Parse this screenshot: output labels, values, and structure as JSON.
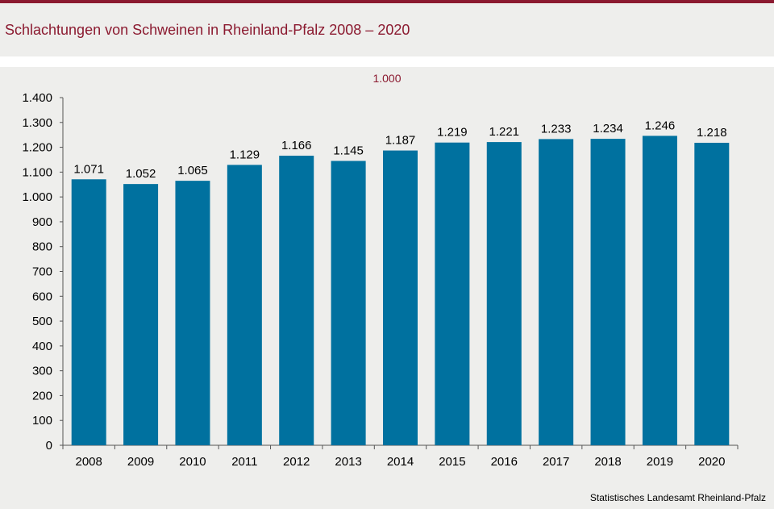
{
  "title": "Schlachtungen von Schweinen in Rheinland-Pfalz 2008 – 2020",
  "unit_label": "1.000",
  "source": "Statistisches Landesamt  Rheinland-Pfalz",
  "colors": {
    "bar": "#00719f",
    "accent": "#8b1a30",
    "background": "#eeeeec"
  },
  "chart_data": {
    "type": "bar",
    "categories": [
      "2008",
      "2009",
      "2010",
      "2011",
      "2012",
      "2013",
      "2014",
      "2015",
      "2016",
      "2017",
      "2018",
      "2019",
      "2020"
    ],
    "values": [
      1071,
      1052,
      1065,
      1129,
      1166,
      1145,
      1187,
      1219,
      1221,
      1233,
      1234,
      1246,
      1218
    ],
    "value_labels": [
      "1.071",
      "1.052",
      "1.065",
      "1.129",
      "1.166",
      "1.145",
      "1.187",
      "1.219",
      "1.221",
      "1.233",
      "1.234",
      "1.246",
      "1.218"
    ],
    "y_ticks": [
      0,
      100,
      200,
      300,
      400,
      500,
      600,
      700,
      800,
      900,
      1000,
      1100,
      1200,
      1300,
      1400
    ],
    "y_tick_labels": [
      "0",
      "100",
      "200",
      "300",
      "400",
      "500",
      "600",
      "700",
      "800",
      "900",
      "1.000",
      "1.100",
      "1.200",
      "1.300",
      "1.400"
    ],
    "ylim": [
      0,
      1400
    ],
    "title": "Schlachtungen von Schweinen in Rheinland-Pfalz 2008 – 2020",
    "ylabel": "1.000",
    "grid": false,
    "legend": "none"
  }
}
